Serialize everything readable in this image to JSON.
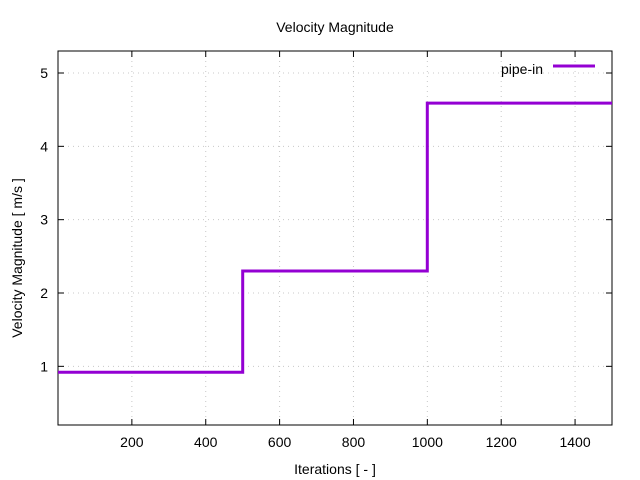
{
  "chart_data": {
    "type": "line",
    "title": "Velocity Magnitude",
    "xlabel": "Iterations [ - ]",
    "ylabel": "Velocity Magnitude [ m/s ]",
    "xlim": [
      0,
      1500
    ],
    "ylim": [
      0.2,
      5.3
    ],
    "xticks": [
      200,
      400,
      600,
      800,
      1000,
      1200,
      1400
    ],
    "yticks": [
      1,
      2,
      3,
      4,
      5
    ],
    "grid": true,
    "legend_position": "top-right",
    "series": [
      {
        "name": "pipe-in",
        "color": "#9400d3",
        "step": true,
        "x": [
          0,
          500,
          500,
          1000,
          1000,
          1500
        ],
        "y": [
          0.92,
          0.92,
          2.3,
          2.3,
          4.59,
          4.59
        ]
      }
    ]
  }
}
